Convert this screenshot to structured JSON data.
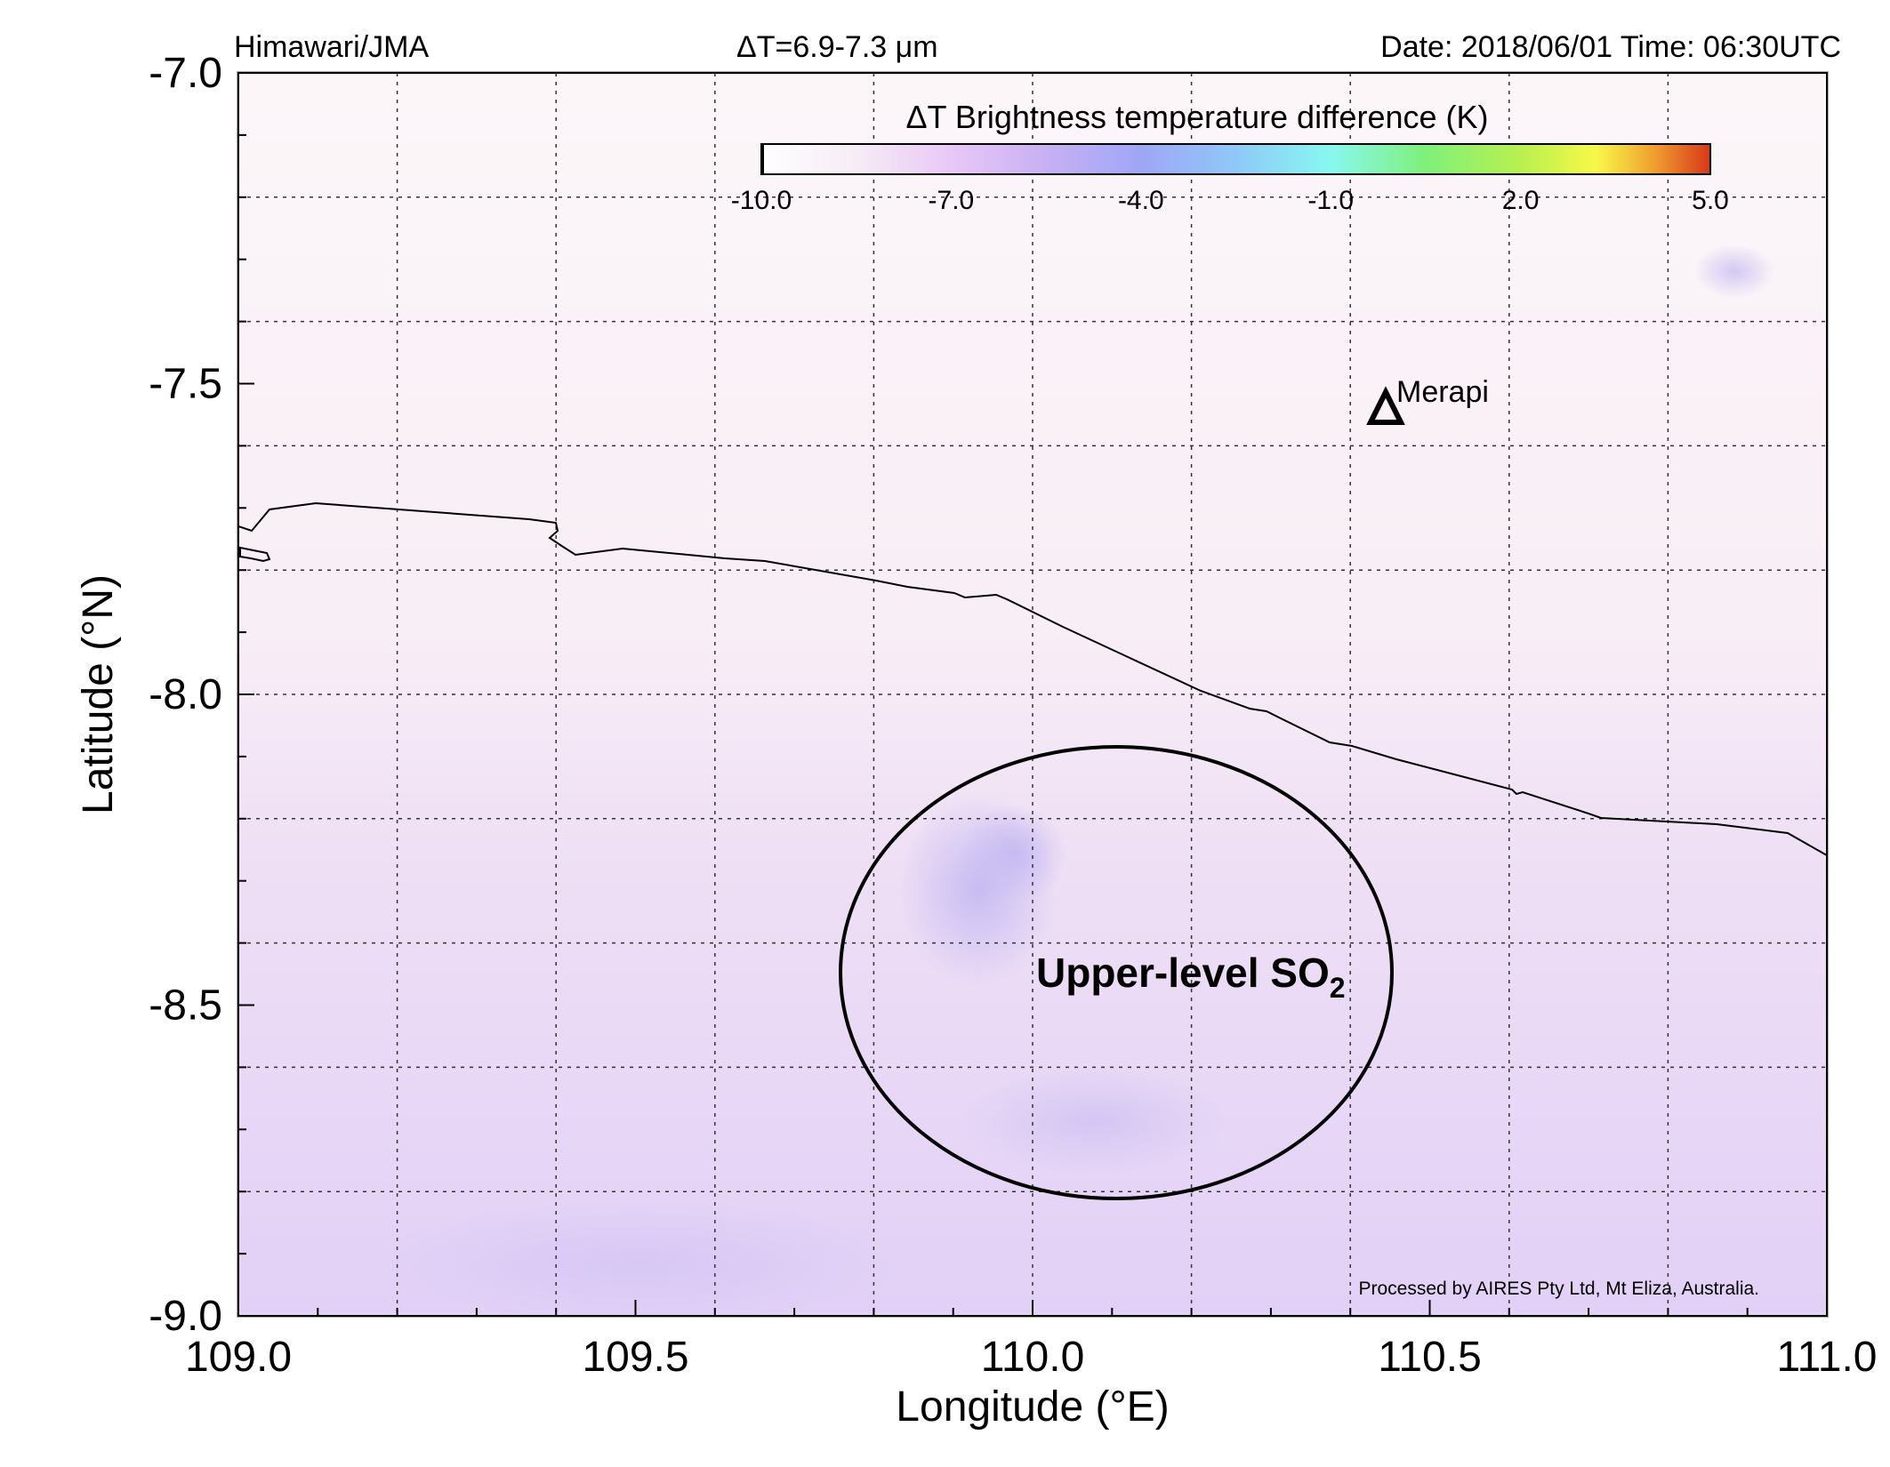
{
  "header": {
    "source": "Himawari/JMA",
    "channel_prefix": "ΔT=6.9-7.3 ",
    "channel_unit": "μm",
    "datetime": "Date: 2018/06/01 Time: 06:30UTC"
  },
  "colorbar": {
    "title": "ΔT Brightness temperature difference (K)",
    "ticks": [
      "-10.0",
      "-7.0",
      "-4.0",
      "-1.0",
      "2.0",
      "5.0"
    ],
    "range": [
      -10,
      5
    ]
  },
  "axes": {
    "xlabel": "Longitude (°E)",
    "ylabel": "Latitude (°N)",
    "xlim": [
      109.0,
      111.0
    ],
    "ylim": [
      -9.0,
      -7.0
    ],
    "xticks": [
      "109.0",
      "109.5",
      "110.0",
      "110.5",
      "111.0"
    ],
    "yticks": [
      "-7.0",
      "-7.5",
      "-8.0",
      "-8.5",
      "-9.0"
    ],
    "grid": true
  },
  "volcano": {
    "name": "Merapi",
    "lon": 110.44,
    "lat": -7.54
  },
  "annotation": {
    "text": "Upper-level SO",
    "subscript": "2",
    "center_lon": 110.1,
    "center_lat": -8.44
  },
  "credit": "Processed by AIRES Pty Ltd, Mt Eliza, Australia.",
  "colors": {
    "background": "#fbf3f8",
    "plume": "#d7c8f4",
    "coast": "#000000",
    "grid": "#333333"
  }
}
